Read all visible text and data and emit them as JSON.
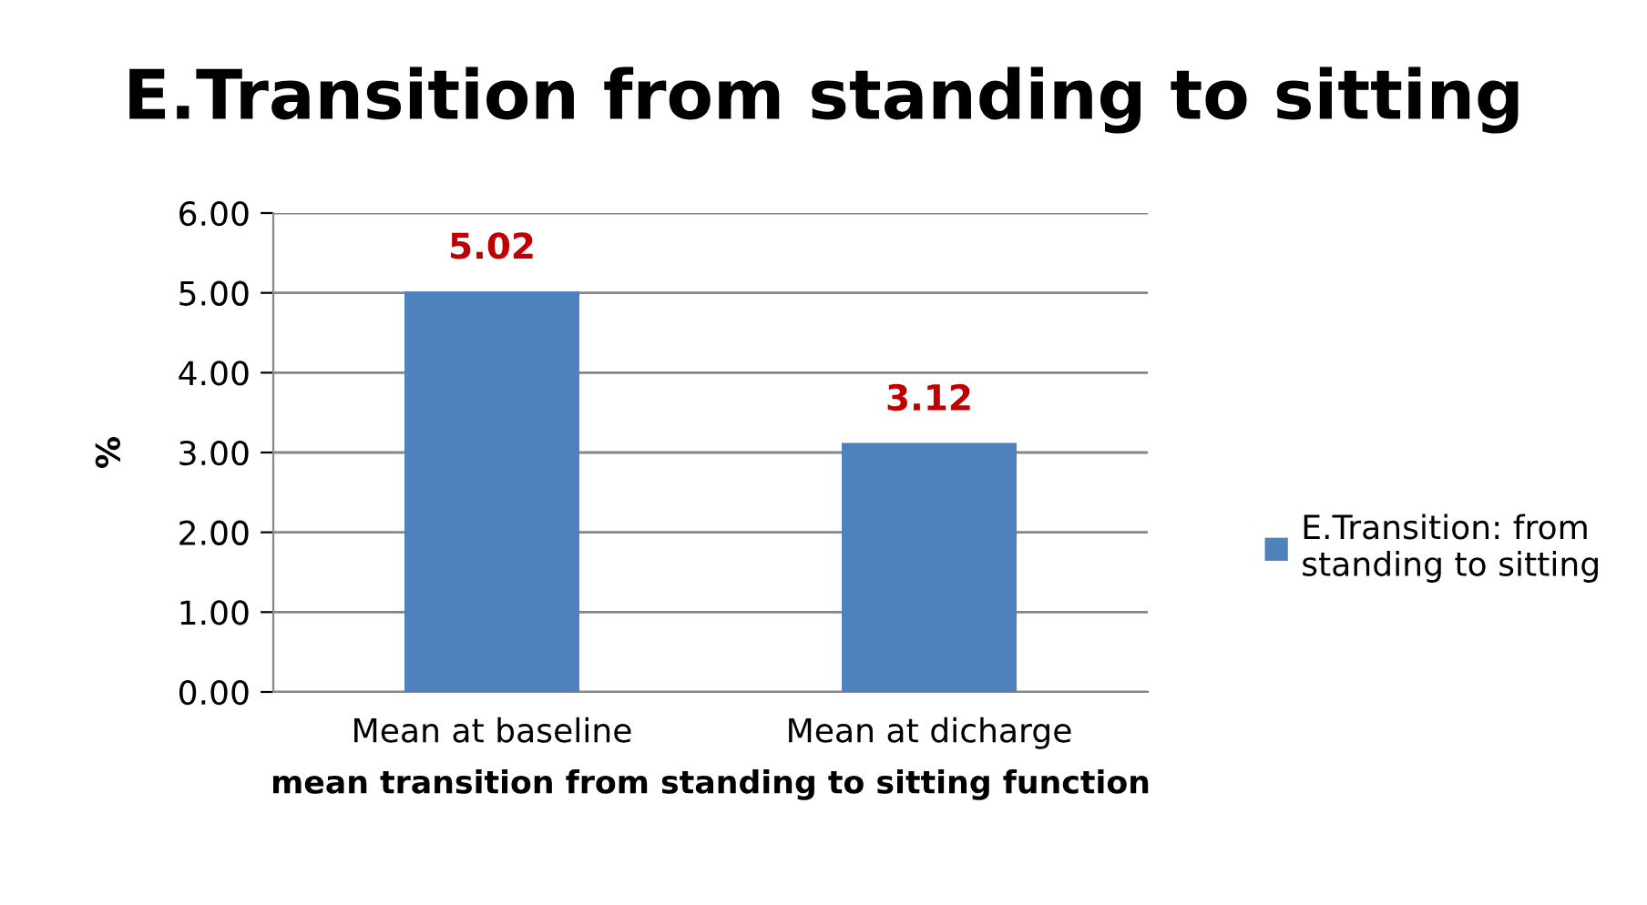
{
  "chart_data": {
    "type": "bar",
    "title": "E.Transition from standing to sitting",
    "xlabel": "mean transition from standing to sitting function",
    "ylabel": "%",
    "categories": [
      "Mean at baseline",
      "Mean at dicharge"
    ],
    "series": [
      {
        "name": "E.Transition: from standing to sitting",
        "color": "#4f81bd",
        "values": [
          5.02,
          3.12
        ]
      }
    ],
    "ylim": [
      0,
      6
    ],
    "yticks": [
      {
        "value": 0,
        "label": "0.00"
      },
      {
        "value": 1,
        "label": "1.00"
      },
      {
        "value": 2,
        "label": "2.00"
      },
      {
        "value": 3,
        "label": "3.00"
      },
      {
        "value": 4,
        "label": "4.00"
      },
      {
        "value": 5,
        "label": "5.00"
      },
      {
        "value": 6,
        "label": "6.00"
      }
    ],
    "grid": "y",
    "legend": "right",
    "data_labels": true
  }
}
